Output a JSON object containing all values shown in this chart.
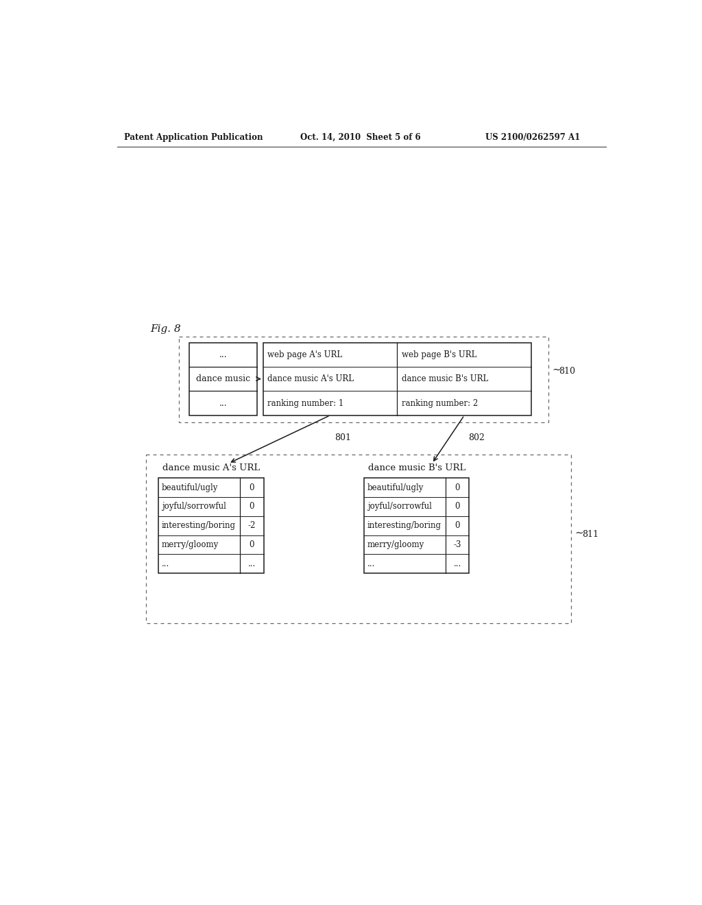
{
  "header_left": "Patent Application Publication",
  "header_center": "Oct. 14, 2010  Sheet 5 of 6",
  "header_right": "US 2100/0262597 A1",
  "fig_label": "Fig. 8",
  "bg_color": "#ffffff",
  "text_color": "#1a1a1a",
  "box_810_label": "810",
  "box_811_label": "811",
  "arrow_801_label": "801",
  "arrow_802_label": "802",
  "search_box_rows": [
    "...",
    "dance music",
    "..."
  ],
  "result_col_a": [
    "web page A's URL",
    "dance music A's URL",
    "ranking number: 1"
  ],
  "result_col_b": [
    "web page B's URL",
    "dance music B's URL",
    "ranking number: 2"
  ],
  "table_a_title": "dance music A's URL",
  "table_a_rows": [
    [
      "beautiful/ugly",
      "0"
    ],
    [
      "joyful/sorrowful",
      "0"
    ],
    [
      "interesting/boring",
      "-2"
    ],
    [
      "merry/gloomy",
      "0"
    ],
    [
      "...",
      "..."
    ]
  ],
  "table_b_title": "dance music B's URL",
  "table_b_rows": [
    [
      "beautiful/ugly",
      "0"
    ],
    [
      "joyful/sorrowful",
      "0"
    ],
    [
      "interesting/boring",
      "0"
    ],
    [
      "merry/gloomy",
      "-3"
    ],
    [
      "...",
      "..."
    ]
  ]
}
